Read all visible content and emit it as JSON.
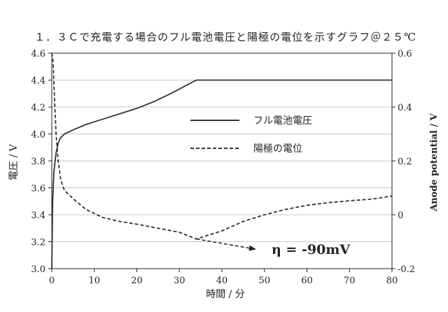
{
  "chart_data": {
    "type": "line",
    "title": "１．３Ｃで充電する場合のフル電池電圧と陽極の電位を示すグラフ＠２５℃",
    "xlabel": "時間 / 分",
    "ylabel": "電圧 / V",
    "y2label": "Anode potential / V",
    "xlim": [
      0,
      80
    ],
    "ylim": [
      3.0,
      4.6
    ],
    "y2lim": [
      -0.2,
      0.6
    ],
    "xticks": [
      "0",
      "10",
      "20",
      "30",
      "40",
      "50",
      "60",
      "70",
      "80"
    ],
    "yticks": [
      "3.0",
      "3.2",
      "3.4",
      "3.6",
      "3.8",
      "4.0",
      "4.2",
      "4.4",
      "4.6"
    ],
    "y2ticks": [
      "-0.2",
      "0",
      "0.2",
      "0.4",
      "0.6"
    ],
    "grid": "horizontal",
    "legend_position": "center-right",
    "series": [
      {
        "name": "フル電池電圧",
        "axis": "left",
        "style": "solid",
        "x": [
          0,
          0.2,
          0.5,
          1,
          1.5,
          2,
          3,
          5,
          8,
          12,
          16,
          20,
          24,
          28,
          31,
          34,
          40,
          50,
          60,
          70,
          80
        ],
        "y": [
          3.0,
          3.5,
          3.72,
          3.86,
          3.93,
          3.97,
          4.0,
          4.03,
          4.07,
          4.11,
          4.15,
          4.19,
          4.24,
          4.3,
          4.35,
          4.4,
          4.4,
          4.4,
          4.4,
          4.4,
          4.4
        ]
      },
      {
        "name": "陽極の電位",
        "axis": "right",
        "style": "dashed",
        "x": [
          0,
          0.3,
          0.6,
          1,
          1.5,
          2,
          2.5,
          3,
          5,
          8,
          12,
          16,
          20,
          25,
          30,
          34,
          40,
          45,
          50,
          55,
          60,
          65,
          70,
          75,
          77,
          80
        ],
        "y": [
          0.6,
          0.57,
          0.45,
          0.3,
          0.2,
          0.14,
          0.11,
          0.09,
          0.06,
          0.02,
          -0.01,
          -0.025,
          -0.035,
          -0.05,
          -0.065,
          -0.09,
          -0.06,
          -0.025,
          0.0,
          0.02,
          0.035,
          0.045,
          0.052,
          0.058,
          0.062,
          0.07
        ]
      }
    ],
    "annotation": {
      "text": "η = -90mV",
      "points_to_x": 34,
      "points_to_y": -0.09
    }
  }
}
